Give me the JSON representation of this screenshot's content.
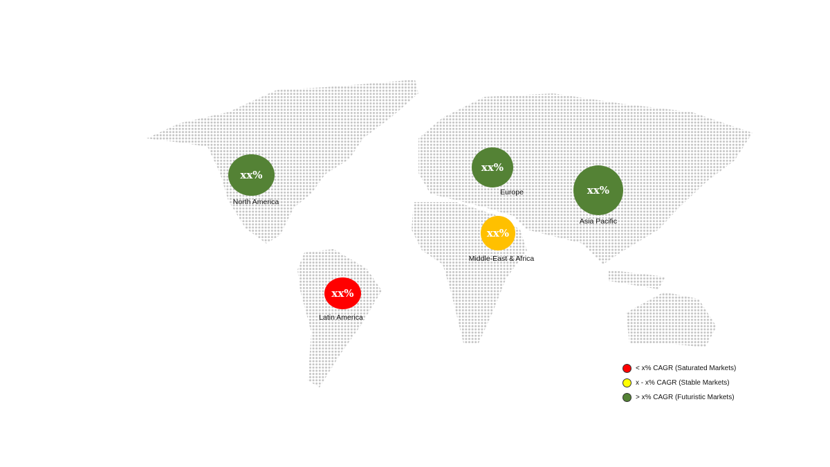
{
  "regions": [
    {
      "name": "North America",
      "value": "xx%",
      "color": "#548235"
    },
    {
      "name": "Europe",
      "value": "xx%",
      "color": "#548235"
    },
    {
      "name": "Asia Pacific",
      "value": "xx%",
      "color": "#548235"
    },
    {
      "name": "Middle-East & Africa",
      "value": "xx%",
      "color": "#ffc000"
    },
    {
      "name": "Latin America",
      "value": "xx%",
      "color": "#ff0000"
    }
  ],
  "legend": [
    {
      "label": "< x% CAGR (Saturated Markets)",
      "color": "#ff0000"
    },
    {
      "label": "x - x% CAGR (Stable Markets)",
      "color": "#ffff00"
    },
    {
      "label": "> x% CAGR (Futuristic Markets)",
      "color": "#548235"
    }
  ],
  "map_dot_color": "#c4c4c4"
}
